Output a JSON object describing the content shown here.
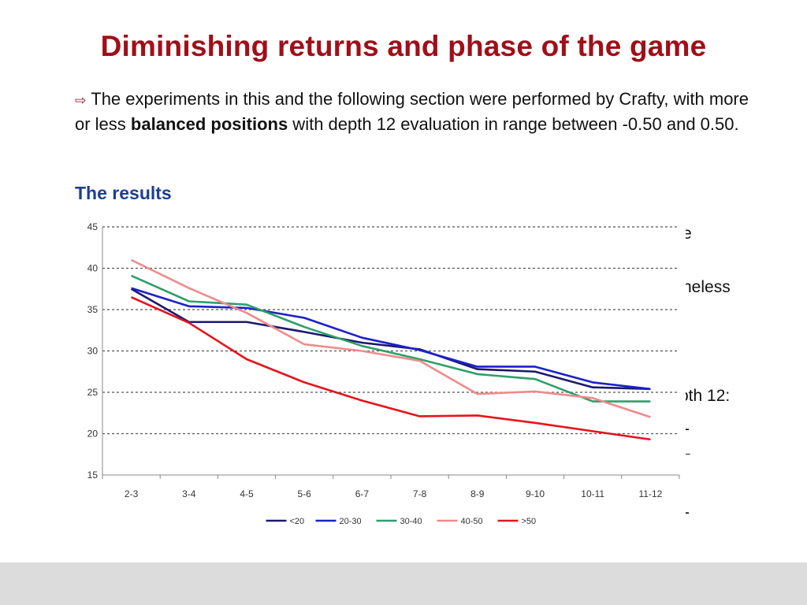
{
  "slide": {
    "title": "Diminishing returns and phase of the game",
    "bullet": {
      "arrow_icon": "⇨",
      "text_before": "The experiments in this and the following section were performed by Crafty, with more or less ",
      "bold": "balanced positions",
      "text_after": " with depth 12 evaluation in range between -0.50 and 0.50."
    },
    "results_heading": "The results",
    "hidden_text_fragments": [
      "e",
      "heless",
      "oth 12:",
      "-",
      "–",
      "-"
    ]
  },
  "chart_data": {
    "type": "line",
    "categories": [
      "2-3",
      "3-4",
      "4-5",
      "5-6",
      "6-7",
      "7-8",
      "8-9",
      "9-10",
      "10-11",
      "11-12"
    ],
    "ylim": [
      15,
      45
    ],
    "yticks": [
      15,
      20,
      25,
      30,
      35,
      40,
      45
    ],
    "grid": "horizontal dashed",
    "legend_position": "bottom",
    "series": [
      {
        "name": "<20",
        "color": "#1a1a6e",
        "values": [
          37.5,
          33.5,
          33.5,
          32.3,
          31,
          30.2,
          27.8,
          27.5,
          25.6,
          25.4
        ]
      },
      {
        "name": "20-30",
        "color": "#1b21c9",
        "values": [
          37.6,
          35.4,
          35.2,
          34,
          31.6,
          30.1,
          28.1,
          28.1,
          26.2,
          25.4
        ]
      },
      {
        "name": "30-40",
        "color": "#2f9e6b",
        "values": [
          39.1,
          36,
          35.6,
          32.9,
          30.6,
          29,
          27.2,
          26.6,
          23.9,
          23.9
        ]
      },
      {
        "name": "40-50",
        "color": "#f08a8a",
        "values": [
          41,
          37.6,
          34.6,
          30.8,
          30,
          28.8,
          24.8,
          25.1,
          24.3,
          22
        ]
      },
      {
        "name": ">50",
        "color": "#e4141e",
        "values": [
          36.5,
          33.4,
          29,
          26.2,
          24,
          22.1,
          22.2,
          21.3,
          20.3,
          19.3
        ]
      }
    ]
  }
}
